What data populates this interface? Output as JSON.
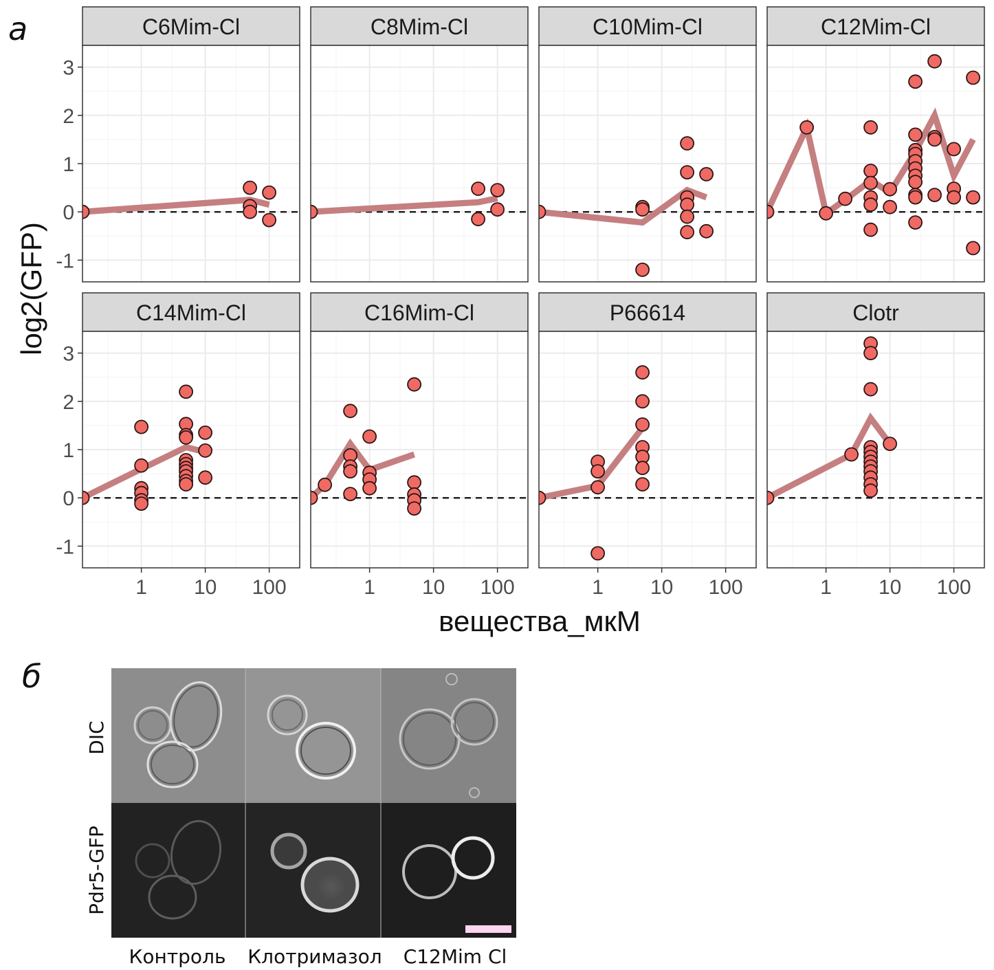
{
  "panel_a_label": "а",
  "panel_b_label": "б",
  "chart_data": {
    "type": "scatter",
    "facets": [
      {
        "name": "C6Mim-Cl",
        "points": [
          [
            0.12,
            0
          ],
          [
            50,
            0.5
          ],
          [
            50,
            0.12
          ],
          [
            50,
            0
          ],
          [
            100,
            0.4
          ],
          [
            100,
            -0.17
          ]
        ],
        "line": [
          [
            0.12,
            0
          ],
          [
            50,
            0.25
          ],
          [
            100,
            0.15
          ]
        ]
      },
      {
        "name": "C8Mim-Cl",
        "points": [
          [
            0.12,
            0
          ],
          [
            50,
            0.48
          ],
          [
            50,
            -0.15
          ],
          [
            100,
            0.45
          ],
          [
            100,
            0.05
          ]
        ],
        "line": [
          [
            0.12,
            0
          ],
          [
            50,
            0.2
          ],
          [
            100,
            0.28
          ]
        ]
      },
      {
        "name": "C10Mim-Cl",
        "points": [
          [
            0.12,
            0
          ],
          [
            5,
            0.1
          ],
          [
            5,
            0.05
          ],
          [
            5,
            -1.2
          ],
          [
            25,
            1.42
          ],
          [
            25,
            0.82
          ],
          [
            25,
            0.3
          ],
          [
            25,
            0.15
          ],
          [
            25,
            -0.1
          ],
          [
            25,
            -0.42
          ],
          [
            50,
            0.78
          ],
          [
            50,
            -0.4
          ]
        ],
        "line": [
          [
            0.12,
            0
          ],
          [
            5,
            -0.22
          ],
          [
            25,
            0.45
          ],
          [
            50,
            0.3
          ]
        ]
      },
      {
        "name": "C12Mim-Cl",
        "points": [
          [
            0.12,
            0
          ],
          [
            0.5,
            1.75
          ],
          [
            1,
            -0.03
          ],
          [
            2,
            0.27
          ],
          [
            5,
            1.75
          ],
          [
            5,
            0.85
          ],
          [
            5,
            0.6
          ],
          [
            5,
            0.3
          ],
          [
            5,
            0.15
          ],
          [
            5,
            -0.37
          ],
          [
            10,
            0.47
          ],
          [
            10,
            0.1
          ],
          [
            25,
            2.7
          ],
          [
            25,
            1.6
          ],
          [
            25,
            1.28
          ],
          [
            25,
            1.2
          ],
          [
            25,
            1.05
          ],
          [
            25,
            0.9
          ],
          [
            25,
            0.75
          ],
          [
            25,
            0.62
          ],
          [
            25,
            0.35
          ],
          [
            25,
            0.3
          ],
          [
            25,
            -0.22
          ],
          [
            50,
            3.12
          ],
          [
            50,
            1.55
          ],
          [
            50,
            1.5
          ],
          [
            50,
            0.35
          ],
          [
            100,
            1.3
          ],
          [
            100,
            0.48
          ],
          [
            100,
            0.3
          ],
          [
            200,
            2.78
          ],
          [
            200,
            0.3
          ],
          [
            200,
            -0.75
          ]
        ],
        "line": [
          [
            0.12,
            0
          ],
          [
            0.5,
            1.75
          ],
          [
            1,
            -0.03
          ],
          [
            2,
            0.25
          ],
          [
            5,
            0.65
          ],
          [
            10,
            0.4
          ],
          [
            25,
            1.25
          ],
          [
            50,
            2.0
          ],
          [
            100,
            0.75
          ],
          [
            200,
            1.5
          ]
        ]
      },
      {
        "name": "C14Mim-Cl",
        "points": [
          [
            0.12,
            0
          ],
          [
            1,
            1.47
          ],
          [
            1,
            0.67
          ],
          [
            1,
            0.2
          ],
          [
            1,
            0.1
          ],
          [
            1,
            -0.05
          ],
          [
            1,
            -0.12
          ],
          [
            5,
            2.2
          ],
          [
            5,
            1.53
          ],
          [
            5,
            1.3
          ],
          [
            5,
            1.25
          ],
          [
            5,
            0.78
          ],
          [
            5,
            0.7
          ],
          [
            5,
            0.62
          ],
          [
            5,
            0.55
          ],
          [
            5,
            0.45
          ],
          [
            5,
            0.35
          ],
          [
            5,
            0.28
          ],
          [
            10,
            1.35
          ],
          [
            10,
            0.98
          ],
          [
            10,
            0.42
          ]
        ],
        "line": [
          [
            0.12,
            0
          ],
          [
            1,
            0.6
          ],
          [
            5,
            1.05
          ],
          [
            10,
            0.95
          ]
        ]
      },
      {
        "name": "C16Mim-Cl",
        "points": [
          [
            0.12,
            0
          ],
          [
            0.2,
            0.27
          ],
          [
            0.5,
            1.8
          ],
          [
            0.5,
            0.88
          ],
          [
            0.5,
            0.65
          ],
          [
            0.5,
            0.55
          ],
          [
            0.5,
            0.08
          ],
          [
            1,
            1.27
          ],
          [
            1,
            0.52
          ],
          [
            1,
            0.38
          ],
          [
            1,
            0.2
          ],
          [
            5,
            2.35
          ],
          [
            5,
            0.32
          ],
          [
            5,
            0.07
          ],
          [
            5,
            -0.05
          ],
          [
            5,
            -0.22
          ]
        ],
        "line": [
          [
            0.12,
            0
          ],
          [
            0.2,
            0.27
          ],
          [
            0.5,
            1.12
          ],
          [
            1,
            0.58
          ],
          [
            5,
            0.9
          ]
        ]
      },
      {
        "name": "P66614",
        "points": [
          [
            0.12,
            0
          ],
          [
            1,
            0.75
          ],
          [
            1,
            0.55
          ],
          [
            1,
            0.22
          ],
          [
            1,
            -1.15
          ],
          [
            5,
            2.6
          ],
          [
            5,
            2.0
          ],
          [
            5,
            1.52
          ],
          [
            5,
            1.05
          ],
          [
            5,
            0.85
          ],
          [
            5,
            0.62
          ],
          [
            5,
            0.28
          ]
        ],
        "line": [
          [
            0.12,
            0
          ],
          [
            1,
            0.25
          ],
          [
            5,
            1.45
          ]
        ]
      },
      {
        "name": "Clotr",
        "points": [
          [
            0.12,
            0
          ],
          [
            2.5,
            0.9
          ],
          [
            5,
            3.2
          ],
          [
            5,
            3.0
          ],
          [
            5,
            2.25
          ],
          [
            5,
            1.05
          ],
          [
            5,
            0.95
          ],
          [
            5,
            0.85
          ],
          [
            5,
            0.75
          ],
          [
            5,
            0.65
          ],
          [
            5,
            0.55
          ],
          [
            5,
            0.42
          ],
          [
            5,
            0.28
          ],
          [
            5,
            0.15
          ],
          [
            10,
            1.12
          ]
        ],
        "line": [
          [
            0.12,
            0
          ],
          [
            2.5,
            0.9
          ],
          [
            5,
            1.65
          ],
          [
            10,
            1.12
          ]
        ]
      }
    ],
    "x_scale": "log10",
    "xlim": [
      0.12,
      300
    ],
    "x_ticks": [
      1,
      10,
      100
    ],
    "x_tick_labels": [
      "1",
      "10",
      "100"
    ],
    "ylim": [
      -1.45,
      3.45
    ],
    "y_ticks": [
      -1,
      0,
      1,
      2,
      3
    ],
    "y_tick_labels": [
      "-1",
      "0",
      "1",
      "2",
      "3"
    ],
    "xlabel": "вещества_мкМ",
    "ylabel": "log2(GFP)",
    "reference_line_y": 0,
    "grid": true,
    "colors": {
      "point_fill": "#f06a64",
      "point_stroke": "#2a1515",
      "line": "#c57f80",
      "strip_bg": "#d9d9d9",
      "grid": "#ebebeb"
    }
  },
  "micrograph": {
    "row_labels": [
      "DIC",
      "Pdr5-GFP"
    ],
    "column_labels": [
      "Контроль",
      "Клотримазол",
      "C12Mim Cl"
    ],
    "scale_bar_color": "#ffd6f0"
  }
}
